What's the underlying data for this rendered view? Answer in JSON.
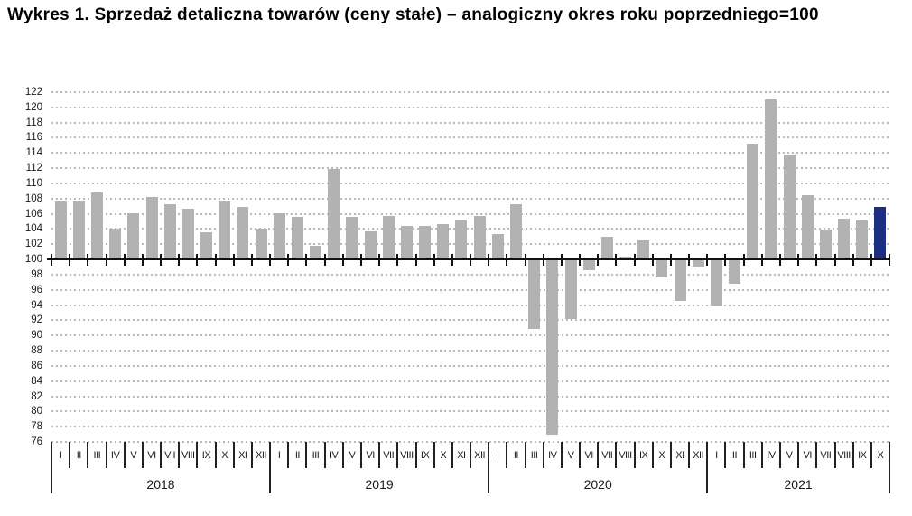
{
  "page": {
    "title": "Wykres 1. Sprzedaż detaliczna towarów (ceny stałe) – analogiczny okres roku poprzedniego=100"
  },
  "chart_data": {
    "type": "bar",
    "title": "Wykres 1. Sprzedaż detaliczna towarów (ceny stałe) – analogiczny okres roku poprzedniego=100",
    "xlabel": "",
    "ylabel": "",
    "ylim": [
      76,
      122
    ],
    "ytick_step": 2,
    "yticks": [
      122,
      120,
      118,
      116,
      114,
      112,
      110,
      108,
      106,
      104,
      102,
      100,
      98,
      96,
      94,
      92,
      90,
      88,
      86,
      84,
      82,
      80,
      78,
      76
    ],
    "baseline": 100,
    "grid": "horizontal-dotted",
    "legend": "none",
    "colors": {
      "bar": "#b2b2b2",
      "highlight": "#1c2e7f",
      "axis": "#111111",
      "gridline": "#b9b9b9",
      "background": "#ffffff"
    },
    "highlighted_bar": {
      "year": "2021",
      "month": "X",
      "value": 106.9
    },
    "groups": [
      {
        "year": "2018",
        "categories": [
          "I",
          "II",
          "III",
          "IV",
          "V",
          "VI",
          "VII",
          "VIII",
          "IX",
          "X",
          "XI",
          "XII"
        ],
        "values": [
          107.7,
          107.7,
          108.8,
          104.0,
          106.1,
          108.2,
          107.3,
          106.7,
          103.6,
          107.8,
          106.9,
          104.0
        ]
      },
      {
        "year": "2019",
        "categories": [
          "I",
          "II",
          "III",
          "IV",
          "V",
          "VI",
          "VII",
          "VIII",
          "IX",
          "X",
          "XI",
          "XII"
        ],
        "values": [
          106.1,
          105.6,
          101.8,
          111.9,
          105.6,
          103.7,
          105.7,
          104.4,
          104.4,
          104.6,
          105.2,
          105.7
        ]
      },
      {
        "year": "2020",
        "categories": [
          "I",
          "II",
          "III",
          "IV",
          "V",
          "VI",
          "VII",
          "VIII",
          "IX",
          "X",
          "XI",
          "XII"
        ],
        "values": [
          103.4,
          107.3,
          91.0,
          77.1,
          92.3,
          98.7,
          103.0,
          100.4,
          102.5,
          97.7,
          94.7,
          99.2
        ]
      },
      {
        "year": "2021",
        "categories": [
          "I",
          "II",
          "III",
          "IV",
          "V",
          "VI",
          "VII",
          "VIII",
          "IX",
          "X"
        ],
        "values": [
          94.0,
          96.9,
          115.2,
          121.1,
          113.8,
          108.5,
          103.9,
          105.4,
          105.1,
          106.9
        ]
      }
    ]
  }
}
